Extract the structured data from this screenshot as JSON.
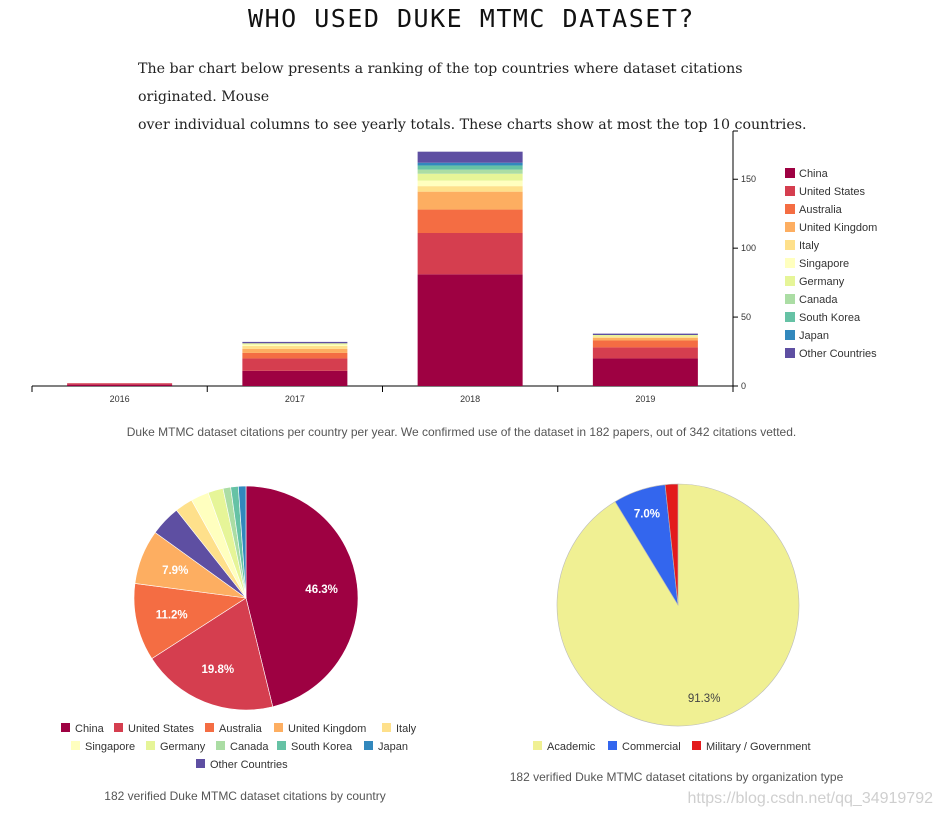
{
  "page": {
    "title": "WHO USED DUKE MTMC DATASET?",
    "intro_line1": "The bar chart below presents a ranking of the top countries where dataset citations originated. Mouse",
    "intro_line2": "over individual columns to see yearly totals. These charts show at most the top 10 countries.",
    "bar_caption": "Duke MTMC dataset citations per country per year. We confirmed use of the dataset in 182 papers, out of 342 citations vetted.",
    "pie1_caption": "182 verified Duke MTMC dataset citations by country",
    "pie2_caption": "182 verified Duke MTMC dataset citations by organization type",
    "watermark": "https://blog.csdn.net/qq_34919792"
  },
  "chart_data": [
    {
      "type": "bar",
      "stacked": true,
      "categories": [
        "2016",
        "2017",
        "2018",
        "2019"
      ],
      "ylim": [
        0,
        185
      ],
      "yticks": [
        0,
        50,
        100,
        150
      ],
      "legend": "right",
      "series": [
        {
          "name": "China",
          "color": "#9e0142",
          "values": [
            1,
            11,
            81,
            20
          ]
        },
        {
          "name": "United States",
          "color": "#d53e4f",
          "values": [
            1,
            9,
            30,
            8
          ]
        },
        {
          "name": "Australia",
          "color": "#f46d43",
          "values": [
            0,
            4,
            17,
            5
          ]
        },
        {
          "name": "United Kingdom",
          "color": "#fdae61",
          "values": [
            0,
            3,
            13,
            2
          ]
        },
        {
          "name": "Italy",
          "color": "#fee08b",
          "values": [
            0,
            2,
            4,
            1
          ]
        },
        {
          "name": "Singapore",
          "color": "#ffffbf",
          "values": [
            0,
            1,
            4,
            0
          ]
        },
        {
          "name": "Germany",
          "color": "#e6f598",
          "values": [
            0,
            1,
            5,
            1
          ]
        },
        {
          "name": "Canada",
          "color": "#abdda4",
          "values": [
            0,
            0,
            3,
            0
          ]
        },
        {
          "name": "South Korea",
          "color": "#66c2a5",
          "values": [
            0,
            0,
            3,
            0
          ]
        },
        {
          "name": "Japan",
          "color": "#3288bd",
          "values": [
            0,
            0,
            2,
            0
          ]
        },
        {
          "name": "Other Countries",
          "color": "#5e4fa2",
          "values": [
            0,
            1,
            8,
            1
          ]
        }
      ]
    },
    {
      "type": "pie",
      "legend": "bottom",
      "slices": [
        {
          "name": "China",
          "value": 46.3,
          "color": "#9e0142",
          "label": "46.3%"
        },
        {
          "name": "United States",
          "value": 19.8,
          "color": "#d53e4f",
          "label": "19.8%"
        },
        {
          "name": "Australia",
          "value": 11.2,
          "color": "#f46d43",
          "label": "11.2%"
        },
        {
          "name": "United Kingdom",
          "value": 7.9,
          "color": "#fdae61",
          "label": "7.9%"
        },
        {
          "name": "Other Countries",
          "value": 4.4,
          "color": "#5e4fa2",
          "label": ""
        },
        {
          "name": "Italy",
          "value": 2.6,
          "color": "#fee08b",
          "label": ""
        },
        {
          "name": "Singapore",
          "value": 2.6,
          "color": "#ffffbf",
          "label": ""
        },
        {
          "name": "Germany",
          "value": 2.2,
          "color": "#e6f598",
          "label": ""
        },
        {
          "name": "Canada",
          "value": 1.1,
          "color": "#abdda4",
          "label": ""
        },
        {
          "name": "South Korea",
          "value": 1.1,
          "color": "#66c2a5",
          "label": ""
        },
        {
          "name": "Japan",
          "value": 1.1,
          "color": "#3288bd",
          "label": ""
        }
      ],
      "legend_items": [
        {
          "name": "China",
          "color": "#9e0142"
        },
        {
          "name": "United States",
          "color": "#d53e4f"
        },
        {
          "name": "Australia",
          "color": "#f46d43"
        },
        {
          "name": "United Kingdom",
          "color": "#fdae61"
        },
        {
          "name": "Italy",
          "color": "#fee08b"
        },
        {
          "name": "Singapore",
          "color": "#ffffbf"
        },
        {
          "name": "Germany",
          "color": "#e6f598"
        },
        {
          "name": "Canada",
          "color": "#abdda4"
        },
        {
          "name": "South Korea",
          "color": "#66c2a5"
        },
        {
          "name": "Japan",
          "color": "#3288bd"
        },
        {
          "name": "Other Countries",
          "color": "#5e4fa2"
        }
      ]
    },
    {
      "type": "pie",
      "legend": "bottom",
      "slices": [
        {
          "name": "Academic",
          "value": 91.3,
          "color": "#f0f093",
          "label": "91.3%"
        },
        {
          "name": "Commercial",
          "value": 7.0,
          "color": "#3366ee",
          "label": "7.0%"
        },
        {
          "name": "Military / Government",
          "value": 1.7,
          "color": "#e31a1c",
          "label": ""
        }
      ],
      "legend_items": [
        {
          "name": "Academic",
          "color": "#f0f093"
        },
        {
          "name": "Commercial",
          "color": "#3366ee"
        },
        {
          "name": "Military / Government",
          "color": "#e31a1c"
        }
      ]
    }
  ]
}
